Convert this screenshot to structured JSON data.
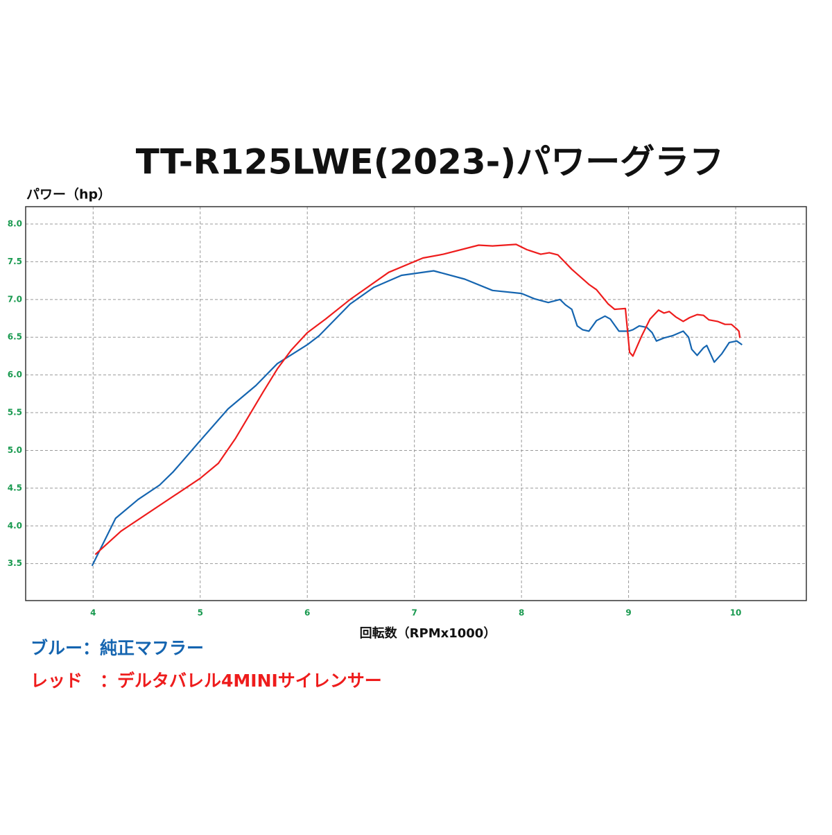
{
  "chart_data": {
    "type": "line",
    "title": "TT-R125LWE(2023-)パワーグラフ",
    "y_label": "パワー（hp）",
    "x_label": "回転数（RPMx1000）",
    "xlim": [
      3.37,
      10.66
    ],
    "ylim": [
      3.01,
      8.23
    ],
    "xticks": [
      4,
      5,
      6,
      7,
      8,
      9,
      10
    ],
    "yticks": [
      {
        "value": 3.5,
        "label": "3.5"
      },
      {
        "value": 4,
        "label": "4.0"
      },
      {
        "value": 4.5,
        "label": "4.5"
      },
      {
        "value": 5,
        "label": "5.0"
      },
      {
        "value": 5.5,
        "label": "5.5"
      },
      {
        "value": 6,
        "label": "6.0"
      },
      {
        "value": 6.5,
        "label": "6.5"
      },
      {
        "value": 7,
        "label": "7.0"
      },
      {
        "value": 7.5,
        "label": "7.5"
      },
      {
        "value": 8,
        "label": "8.0"
      }
    ],
    "grid": true,
    "series": [
      {
        "name": "ブルー：純正マフラー",
        "color": "#1565b0",
        "x": [
          3.99,
          4.21,
          4.42,
          4.62,
          4.75,
          5.0,
          5.26,
          5.52,
          5.72,
          6.0,
          6.11,
          6.4,
          6.62,
          6.88,
          7.18,
          7.47,
          7.73,
          8.0,
          8.12,
          8.25,
          8.36,
          8.41,
          8.47,
          8.52,
          8.57,
          8.63,
          8.7,
          8.78,
          8.83,
          8.91,
          9.0,
          9.04,
          9.1,
          9.17,
          9.22,
          9.26,
          9.33,
          9.41,
          9.51,
          9.56,
          9.59,
          9.64,
          9.7,
          9.73,
          9.8,
          9.87,
          9.94,
          10.01,
          10.06
        ],
        "values": [
          3.47,
          4.1,
          4.35,
          4.54,
          4.72,
          5.13,
          5.55,
          5.86,
          6.15,
          6.4,
          6.52,
          6.94,
          7.16,
          7.32,
          7.38,
          7.27,
          7.12,
          7.08,
          7.01,
          6.96,
          7.0,
          6.93,
          6.87,
          6.65,
          6.6,
          6.58,
          6.72,
          6.78,
          6.74,
          6.58,
          6.58,
          6.6,
          6.65,
          6.63,
          6.56,
          6.45,
          6.49,
          6.52,
          6.58,
          6.5,
          6.34,
          6.26,
          6.36,
          6.39,
          6.17,
          6.28,
          6.43,
          6.45,
          6.4
        ]
      },
      {
        "name": "レッド　：デルタバレル4MINIサイレンサー",
        "color": "#ee1c1c",
        "x": [
          4.02,
          4.26,
          5.0,
          5.17,
          5.33,
          5.59,
          5.72,
          5.85,
          6.0,
          6.17,
          6.4,
          6.76,
          7.08,
          7.27,
          7.6,
          7.73,
          7.95,
          8.05,
          8.18,
          8.26,
          8.34,
          8.47,
          8.63,
          8.7,
          8.81,
          8.87,
          8.97,
          9.01,
          9.04,
          9.12,
          9.2,
          9.28,
          9.33,
          9.38,
          9.44,
          9.51,
          9.57,
          9.64,
          9.7,
          9.75,
          9.83,
          9.9,
          9.96,
          10.01,
          10.03,
          10.04
        ],
        "values": [
          3.62,
          3.93,
          4.63,
          4.83,
          5.16,
          5.78,
          6.08,
          6.33,
          6.56,
          6.74,
          7.0,
          7.36,
          7.55,
          7.6,
          7.72,
          7.71,
          7.73,
          7.66,
          7.6,
          7.62,
          7.59,
          7.4,
          7.2,
          7.13,
          6.94,
          6.87,
          6.88,
          6.3,
          6.25,
          6.51,
          6.74,
          6.86,
          6.82,
          6.84,
          6.77,
          6.71,
          6.76,
          6.8,
          6.79,
          6.73,
          6.71,
          6.67,
          6.67,
          6.61,
          6.58,
          6.49
        ]
      }
    ]
  }
}
